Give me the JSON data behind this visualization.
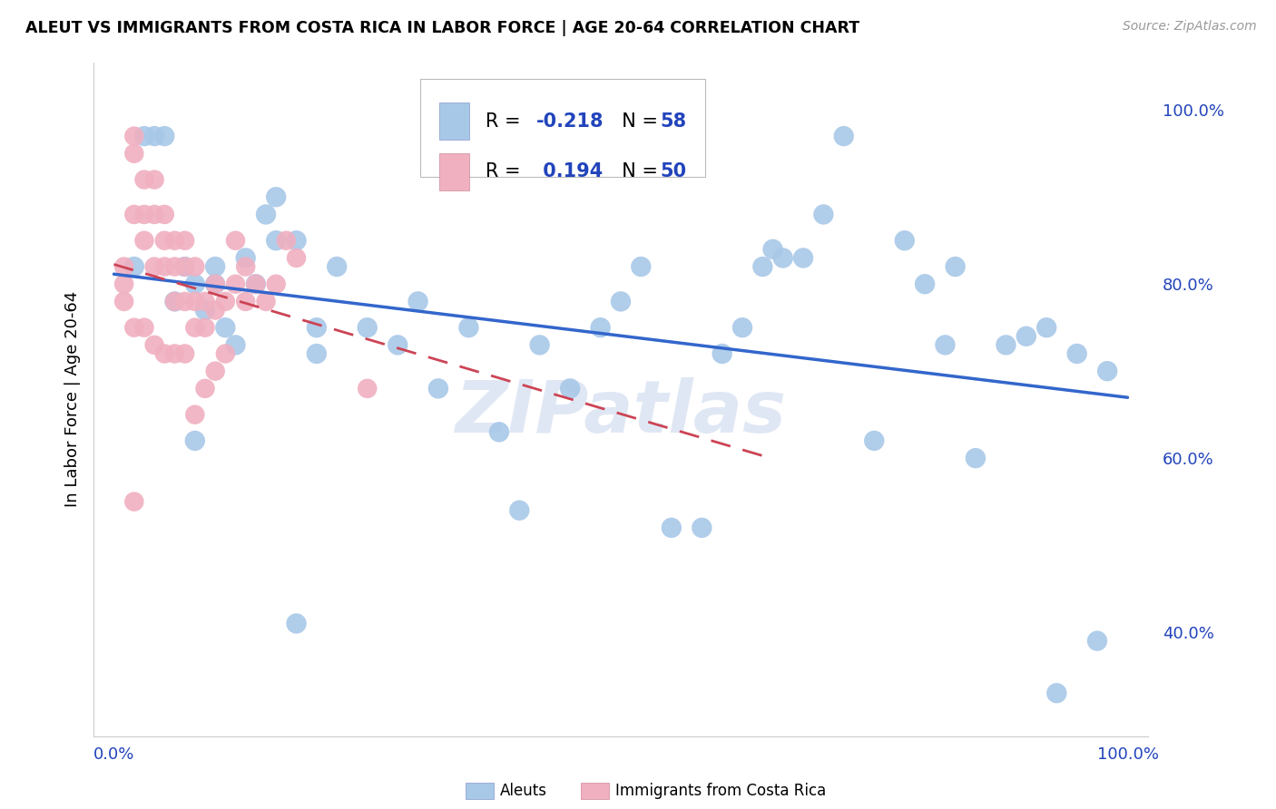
{
  "title": "ALEUT VS IMMIGRANTS FROM COSTA RICA IN LABOR FORCE | AGE 20-64 CORRELATION CHART",
  "source": "Source: ZipAtlas.com",
  "ylabel": "In Labor Force | Age 20-64",
  "legend_label1": "Aleuts",
  "legend_label2": "Immigrants from Costa Rica",
  "r1": -0.218,
  "n1": 58,
  "r2": 0.194,
  "n2": 50,
  "color_blue": "#a8c8e8",
  "color_pink": "#f0b0c0",
  "color_blue_line": "#3366CC",
  "color_pink_line": "#CC4455",
  "watermark": "ZIPatlas",
  "blue_x": [
    0.02,
    0.04,
    0.05,
    0.07,
    0.08,
    0.09,
    0.1,
    0.11,
    0.13,
    0.14,
    0.15,
    0.16,
    0.18,
    0.2,
    0.22,
    0.25,
    0.28,
    0.3,
    0.32,
    0.35,
    0.38,
    0.4,
    0.42,
    0.45,
    0.48,
    0.5,
    0.52,
    0.55,
    0.58,
    0.6,
    0.62,
    0.65,
    0.68,
    0.7,
    0.72,
    0.75,
    0.78,
    0.8,
    0.82,
    0.83,
    0.85,
    0.88,
    0.9,
    0.92,
    0.93,
    0.95,
    0.97,
    0.98,
    0.64,
    0.66,
    0.18,
    0.08,
    0.1,
    0.2,
    0.03,
    0.06,
    0.12,
    0.16
  ],
  "blue_y": [
    0.82,
    0.97,
    0.97,
    0.82,
    0.8,
    0.77,
    0.82,
    0.75,
    0.83,
    0.8,
    0.88,
    0.9,
    0.85,
    0.72,
    0.82,
    0.75,
    0.73,
    0.78,
    0.68,
    0.75,
    0.63,
    0.54,
    0.73,
    0.68,
    0.75,
    0.78,
    0.82,
    0.52,
    0.52,
    0.72,
    0.75,
    0.84,
    0.83,
    0.88,
    0.97,
    0.62,
    0.85,
    0.8,
    0.73,
    0.82,
    0.6,
    0.73,
    0.74,
    0.75,
    0.33,
    0.72,
    0.39,
    0.7,
    0.82,
    0.83,
    0.41,
    0.62,
    0.8,
    0.75,
    0.97,
    0.78,
    0.73,
    0.85
  ],
  "pink_x": [
    0.01,
    0.01,
    0.01,
    0.02,
    0.02,
    0.02,
    0.02,
    0.03,
    0.03,
    0.03,
    0.03,
    0.04,
    0.04,
    0.04,
    0.04,
    0.05,
    0.05,
    0.05,
    0.05,
    0.06,
    0.06,
    0.06,
    0.06,
    0.07,
    0.07,
    0.07,
    0.07,
    0.08,
    0.08,
    0.08,
    0.08,
    0.09,
    0.09,
    0.09,
    0.1,
    0.1,
    0.1,
    0.11,
    0.11,
    0.12,
    0.12,
    0.13,
    0.13,
    0.14,
    0.15,
    0.16,
    0.17,
    0.18,
    0.02,
    0.25
  ],
  "pink_y": [
    0.82,
    0.8,
    0.78,
    0.97,
    0.95,
    0.88,
    0.75,
    0.92,
    0.88,
    0.85,
    0.75,
    0.92,
    0.88,
    0.82,
    0.73,
    0.88,
    0.85,
    0.82,
    0.72,
    0.85,
    0.82,
    0.78,
    0.72,
    0.85,
    0.82,
    0.78,
    0.72,
    0.82,
    0.78,
    0.75,
    0.65,
    0.78,
    0.75,
    0.68,
    0.8,
    0.77,
    0.7,
    0.78,
    0.72,
    0.85,
    0.8,
    0.82,
    0.78,
    0.8,
    0.78,
    0.8,
    0.85,
    0.83,
    0.55,
    0.68
  ]
}
